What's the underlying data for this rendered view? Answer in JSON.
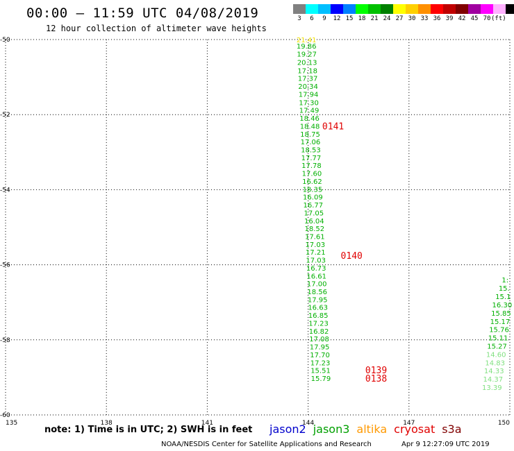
{
  "header": {
    "title": "00:00 – 11:59 UTC 04/08/2019",
    "subtitle": "12 hour collection of altimeter wave heights"
  },
  "colorbar": {
    "colors": [
      "#808080",
      "#00ffff",
      "#00bfff",
      "#0000ff",
      "#0080ff",
      "#00ff00",
      "#00c000",
      "#008000",
      "#ffff00",
      "#ffd000",
      "#ff9000",
      "#ff0000",
      "#c00000",
      "#800000",
      "#a000a0",
      "#ff00ff",
      "#ffb0ff",
      "#000000"
    ],
    "labels": [
      "3",
      "6",
      "9",
      "12",
      "15",
      "18",
      "21",
      "24",
      "27",
      "30",
      "33",
      "36",
      "39",
      "42",
      "45",
      "70"
    ],
    "units": "(ft)"
  },
  "chart_data": {
    "type": "scatter",
    "title": "12 hour collection of altimeter wave heights",
    "xlabel": "",
    "ylabel": "",
    "xlim": [
      135,
      150
    ],
    "ylim": [
      -60,
      -50
    ],
    "x_ticks": [
      {
        "value": 135,
        "label": "135"
      },
      {
        "value": 138,
        "label": "138"
      },
      {
        "value": 141,
        "label": "141"
      },
      {
        "value": 144,
        "label": "144"
      },
      {
        "value": 147,
        "label": "147"
      },
      {
        "value": 150,
        "label": "150"
      }
    ],
    "y_ticks": [
      {
        "value": -50,
        "label": "-50"
      },
      {
        "value": -52,
        "label": "-52"
      },
      {
        "value": -54,
        "label": "-54"
      },
      {
        "value": -56,
        "label": "-56"
      },
      {
        "value": -58,
        "label": "-58"
      },
      {
        "value": -60,
        "label": "-60"
      }
    ],
    "grid": true,
    "series": [
      {
        "color": "#00b000",
        "points": [
          {
            "lon": 143.95,
            "lat": -50.0,
            "swh": "21.41",
            "color": "#f0e000"
          },
          {
            "lon": 143.95,
            "lat": -50.17,
            "swh": "19.86"
          },
          {
            "lon": 143.96,
            "lat": -50.38,
            "swh": "19.27"
          },
          {
            "lon": 143.97,
            "lat": -50.6,
            "swh": "20.13"
          },
          {
            "lon": 143.98,
            "lat": -50.82,
            "swh": "17.18"
          },
          {
            "lon": 143.99,
            "lat": -51.03,
            "swh": "17.37"
          },
          {
            "lon": 144.0,
            "lat": -51.24,
            "swh": "20.34"
          },
          {
            "lon": 144.01,
            "lat": -51.45,
            "swh": "17.94"
          },
          {
            "lon": 144.02,
            "lat": -51.67,
            "swh": "17.30"
          },
          {
            "lon": 144.03,
            "lat": -51.88,
            "swh": "17.49"
          },
          {
            "lon": 144.04,
            "lat": -52.09,
            "swh": "18.46"
          },
          {
            "lon": 144.05,
            "lat": -52.3,
            "swh": "18.48"
          },
          {
            "lon": 144.06,
            "lat": -52.51,
            "swh": "18.75"
          },
          {
            "lon": 144.07,
            "lat": -52.72,
            "swh": "17.06"
          },
          {
            "lon": 144.08,
            "lat": -52.93,
            "swh": "18.53"
          },
          {
            "lon": 144.09,
            "lat": -53.14,
            "swh": "17.77"
          },
          {
            "lon": 144.1,
            "lat": -53.35,
            "swh": "17.78"
          },
          {
            "lon": 144.11,
            "lat": -53.56,
            "swh": "17.60"
          },
          {
            "lon": 144.12,
            "lat": -53.77,
            "swh": "16.62"
          },
          {
            "lon": 144.13,
            "lat": -53.98,
            "swh": "18.35"
          },
          {
            "lon": 144.14,
            "lat": -54.19,
            "swh": "16.09"
          },
          {
            "lon": 144.15,
            "lat": -54.4,
            "swh": "16.77"
          },
          {
            "lon": 144.17,
            "lat": -54.61,
            "swh": "17.05"
          },
          {
            "lon": 144.18,
            "lat": -54.82,
            "swh": "16.04"
          },
          {
            "lon": 144.19,
            "lat": -55.03,
            "swh": "18.52"
          },
          {
            "lon": 144.2,
            "lat": -55.24,
            "swh": "17.61"
          },
          {
            "lon": 144.21,
            "lat": -55.45,
            "swh": "17.03"
          },
          {
            "lon": 144.22,
            "lat": -55.66,
            "swh": "17.21"
          },
          {
            "lon": 144.23,
            "lat": -55.87,
            "swh": "17.03"
          },
          {
            "lon": 144.24,
            "lat": -56.08,
            "swh": "16.73"
          },
          {
            "lon": 144.25,
            "lat": -56.29,
            "swh": "16.61"
          },
          {
            "lon": 144.26,
            "lat": -56.5,
            "swh": "17.00"
          },
          {
            "lon": 144.27,
            "lat": -56.71,
            "swh": "18.56"
          },
          {
            "lon": 144.28,
            "lat": -56.92,
            "swh": "17.95"
          },
          {
            "lon": 144.29,
            "lat": -57.13,
            "swh": "16.63"
          },
          {
            "lon": 144.3,
            "lat": -57.34,
            "swh": "16.85"
          },
          {
            "lon": 144.31,
            "lat": -57.55,
            "swh": "17.23"
          },
          {
            "lon": 144.32,
            "lat": -57.76,
            "swh": "16.82"
          },
          {
            "lon": 144.33,
            "lat": -57.97,
            "swh": "17.08"
          },
          {
            "lon": 144.34,
            "lat": -58.18,
            "swh": "17.95"
          },
          {
            "lon": 144.35,
            "lat": -58.39,
            "swh": "17.70"
          },
          {
            "lon": 144.36,
            "lat": -58.6,
            "swh": "17.23"
          },
          {
            "lon": 144.37,
            "lat": -58.81,
            "swh": "15.51"
          },
          {
            "lon": 144.38,
            "lat": -59.02,
            "swh": "15.79"
          }
        ]
      },
      {
        "color": "#00b000",
        "points": [
          {
            "lon": 149.86,
            "lat": -56.4,
            "swh": "1:"
          },
          {
            "lon": 149.83,
            "lat": -56.62,
            "swh": "15."
          },
          {
            "lon": 149.8,
            "lat": -56.84,
            "swh": "15.1"
          },
          {
            "lon": 149.77,
            "lat": -57.06,
            "swh": "16.30"
          },
          {
            "lon": 149.74,
            "lat": -57.28,
            "swh": "15.85"
          },
          {
            "lon": 149.71,
            "lat": -57.5,
            "swh": "15.17"
          },
          {
            "lon": 149.68,
            "lat": -57.72,
            "swh": "15.76"
          },
          {
            "lon": 149.65,
            "lat": -57.94,
            "swh": "15.11"
          },
          {
            "lon": 149.62,
            "lat": -58.16,
            "swh": "15.27"
          },
          {
            "lon": 149.59,
            "lat": -58.38,
            "swh": "14.60",
            "color": "#80e080"
          },
          {
            "lon": 149.56,
            "lat": -58.6,
            "swh": "14.83",
            "color": "#80e080"
          },
          {
            "lon": 149.53,
            "lat": -58.82,
            "swh": "14.33",
            "color": "#80e080"
          },
          {
            "lon": 149.5,
            "lat": -59.04,
            "swh": "14.37",
            "color": "#80e080"
          },
          {
            "lon": 149.47,
            "lat": -59.26,
            "swh": "13.39",
            "color": "#80e080"
          }
        ]
      }
    ],
    "pass_labels": [
      {
        "label": "0141",
        "lon": 144.42,
        "lat": -52.3
      },
      {
        "label": "0140",
        "lon": 144.97,
        "lat": -55.75
      },
      {
        "label": "0139",
        "lon": 145.7,
        "lat": -58.8
      },
      {
        "label": "0138",
        "lon": 145.7,
        "lat": -59.02
      }
    ]
  },
  "footer": {
    "note": "note:  1) Time is in UTC;  2) SWH is in feet",
    "legend": [
      {
        "label": "jason2",
        "color": "#0000cc"
      },
      {
        "label": "jason3",
        "color": "#00a000"
      },
      {
        "label": "altika",
        "color": "#ff9900"
      },
      {
        "label": "cryosat",
        "color": "#e00000"
      },
      {
        "label": "s3a",
        "color": "#800000"
      }
    ],
    "credit": "NOAA/NESDIS Center for Satellite Applications and Research",
    "timestamp": "Apr  9 12:27:09 UTC 2019"
  }
}
